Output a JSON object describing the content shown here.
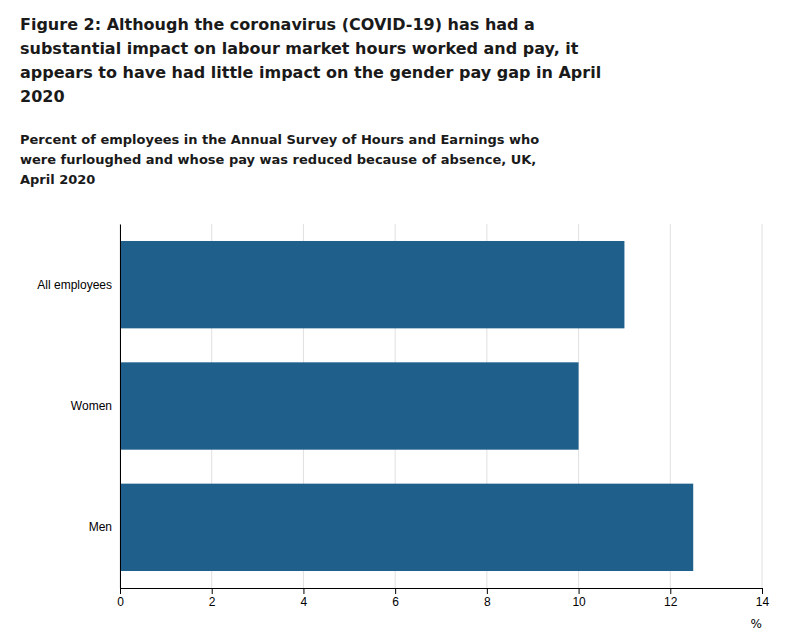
{
  "chart_data": {
    "type": "bar",
    "orientation": "horizontal",
    "title": [
      "Figure 2: Although the coronavirus (COVID-19) has had a",
      "substantial impact on labour market hours worked and pay, it",
      "appears to have had little impact on the gender pay gap in April",
      "2020"
    ],
    "subtitle": [
      "Percent of employees in the Annual Survey of Hours and Earnings who",
      "were furloughed and whose pay was reduced because of absence, UK,",
      "April 2020"
    ],
    "categories": [
      "All employees",
      "Women",
      "Men"
    ],
    "values": [
      11.0,
      10.0,
      12.5
    ],
    "color": "#1F5F8B",
    "xlim": [
      0,
      14
    ],
    "xticks": [
      0,
      2,
      4,
      6,
      8,
      10,
      12,
      14
    ],
    "xlabel": "%",
    "grid": true
  }
}
